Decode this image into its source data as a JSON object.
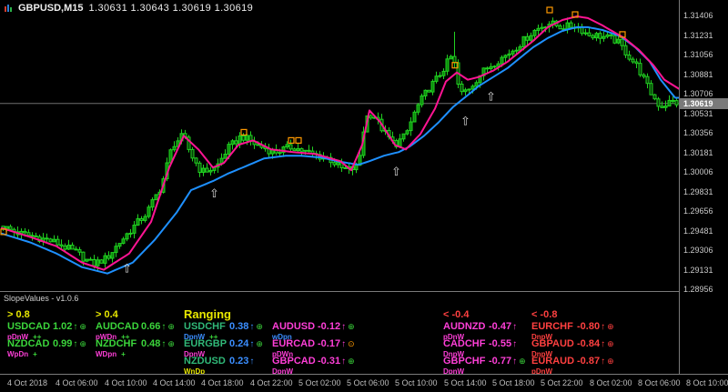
{
  "window_title": {
    "symbol": "GBPUSD,M15",
    "ohlc_text": "1.30631 1.30643 1.30619 1.30619"
  },
  "chart_data": {
    "type": "candlestick",
    "symbol": "GBPUSD",
    "timeframe": "M15",
    "ohlc_current": {
      "open": 1.30631,
      "high": 1.30643,
      "low": 1.30619,
      "close": 1.30619
    },
    "current_price": "1.30619",
    "y_range": [
      1.28956,
      1.31406
    ],
    "price_axis_ticks": [
      "1.31406",
      "1.31231",
      "1.31056",
      "1.30881",
      "1.30706",
      "1.30531",
      "1.30356",
      "1.30181",
      "1.30006",
      "1.29831",
      "1.29656",
      "1.29481",
      "1.29306",
      "1.29131",
      "1.28956"
    ],
    "time_axis_ticks": [
      "4 Oct 2018",
      "4 Oct 06:00",
      "4 Oct 10:00",
      "4 Oct 14:00",
      "4 Oct 18:00",
      "4 Oct 22:00",
      "5 Oct 02:00",
      "5 Oct 06:00",
      "5 Oct 10:00",
      "5 Oct 14:00",
      "5 Oct 18:00",
      "5 Oct 22:00",
      "8 Oct 02:00",
      "8 Oct 06:00",
      "8 Oct 10:00"
    ],
    "price_path_anchors": [
      [
        0,
        1.2952
      ],
      [
        5,
        1.29454
      ],
      [
        10,
        1.29422
      ],
      [
        15,
        1.29373
      ],
      [
        21,
        1.29276
      ],
      [
        25,
        1.29178
      ],
      [
        29,
        1.29235
      ],
      [
        32,
        1.29357
      ],
      [
        36,
        1.29503
      ],
      [
        40,
        1.29641
      ],
      [
        44,
        1.29884
      ],
      [
        47,
        1.30248
      ],
      [
        50,
        1.30329
      ],
      [
        52,
        1.30167
      ],
      [
        55,
        1.30005
      ],
      [
        59,
        1.30045
      ],
      [
        62,
        1.30207
      ],
      [
        66,
        1.30329
      ],
      [
        70,
        1.30248
      ],
      [
        75,
        1.30183
      ],
      [
        80,
        1.30232
      ],
      [
        85,
        1.30167
      ],
      [
        90,
        1.30126
      ],
      [
        94,
        1.30021
      ],
      [
        98,
        1.30045
      ],
      [
        100,
        1.30491
      ],
      [
        102,
        1.30531
      ],
      [
        105,
        1.30369
      ],
      [
        108,
        1.30248
      ],
      [
        111,
        1.30329
      ],
      [
        114,
        1.30572
      ],
      [
        117,
        1.30734
      ],
      [
        120,
        1.30855
      ],
      [
        124,
        1.31058
      ],
      [
        126,
        1.30693
      ],
      [
        129,
        1.30774
      ],
      [
        132,
        1.30895
      ],
      [
        135,
        1.30976
      ],
      [
        139,
        1.31058
      ],
      [
        142,
        1.31139
      ],
      [
        146,
        1.3126
      ],
      [
        150,
        1.31341
      ],
      [
        154,
        1.31301
      ],
      [
        158,
        1.31317
      ],
      [
        161,
        1.31236
      ],
      [
        165,
        1.3122
      ],
      [
        169,
        1.3118
      ],
      [
        172,
        1.31058
      ],
      [
        175,
        1.30936
      ],
      [
        178,
        1.30734
      ],
      [
        181,
        1.30588
      ],
      [
        184,
        1.30637
      ],
      [
        186,
        1.30619
      ]
    ],
    "spikes": [
      {
        "i": 124,
        "high": 1.3126
      },
      {
        "i": 25,
        "low": 1.2914
      }
    ],
    "ma_fast_pink": [
      [
        0,
        1.29503
      ],
      [
        8,
        1.29422
      ],
      [
        15,
        1.29341
      ],
      [
        22,
        1.29195
      ],
      [
        28,
        1.2913
      ],
      [
        35,
        1.29276
      ],
      [
        41,
        1.29559
      ],
      [
        46,
        1.30045
      ],
      [
        50,
        1.30329
      ],
      [
        54,
        1.30207
      ],
      [
        58,
        1.30045
      ],
      [
        61,
        1.30086
      ],
      [
        65,
        1.30248
      ],
      [
        69,
        1.30288
      ],
      [
        74,
        1.30207
      ],
      [
        80,
        1.30183
      ],
      [
        86,
        1.30167
      ],
      [
        93,
        1.30102
      ],
      [
        96,
        1.30021
      ],
      [
        99,
        1.30248
      ],
      [
        101,
        1.30556
      ],
      [
        104,
        1.3045
      ],
      [
        108,
        1.30248
      ],
      [
        111,
        1.30207
      ],
      [
        115,
        1.30345
      ],
      [
        119,
        1.30572
      ],
      [
        122,
        1.30815
      ],
      [
        125,
        1.30896
      ],
      [
        128,
        1.30831
      ],
      [
        131,
        1.30855
      ],
      [
        135,
        1.30912
      ],
      [
        139,
        1.30993
      ],
      [
        142,
        1.31074
      ],
      [
        146,
        1.31179
      ],
      [
        150,
        1.31301
      ],
      [
        154,
        1.31365
      ],
      [
        158,
        1.31398
      ],
      [
        161,
        1.31382
      ],
      [
        165,
        1.31317
      ],
      [
        168,
        1.3126
      ],
      [
        171,
        1.31204
      ],
      [
        175,
        1.31098
      ],
      [
        179,
        1.30961
      ],
      [
        182,
        1.30831
      ],
      [
        186,
        1.3075
      ]
    ],
    "ma_slow_blue": [
      [
        0,
        1.29454
      ],
      [
        8,
        1.29373
      ],
      [
        15,
        1.29276
      ],
      [
        22,
        1.29154
      ],
      [
        29,
        1.29097
      ],
      [
        36,
        1.29195
      ],
      [
        42,
        1.29398
      ],
      [
        48,
        1.29641
      ],
      [
        52,
        1.29843
      ],
      [
        58,
        1.29924
      ],
      [
        62,
        1.29989
      ],
      [
        68,
        1.3007
      ],
      [
        72,
        1.30126
      ],
      [
        78,
        1.30151
      ],
      [
        82,
        1.30151
      ],
      [
        88,
        1.30134
      ],
      [
        92,
        1.30102
      ],
      [
        98,
        1.3007
      ],
      [
        101,
        1.30102
      ],
      [
        105,
        1.30151
      ],
      [
        109,
        1.30183
      ],
      [
        112,
        1.30232
      ],
      [
        116,
        1.30329
      ],
      [
        120,
        1.3045
      ],
      [
        124,
        1.30588
      ],
      [
        128,
        1.30693
      ],
      [
        131,
        1.30774
      ],
      [
        135,
        1.30855
      ],
      [
        139,
        1.30936
      ],
      [
        142,
        1.31017
      ],
      [
        146,
        1.31122
      ],
      [
        150,
        1.31204
      ],
      [
        154,
        1.31268
      ],
      [
        158,
        1.31301
      ],
      [
        161,
        1.31301
      ],
      [
        165,
        1.31276
      ],
      [
        170,
        1.3122
      ],
      [
        174,
        1.31122
      ],
      [
        178,
        1.30993
      ],
      [
        181,
        1.30831
      ],
      [
        185,
        1.30669
      ]
    ],
    "white_up_arrows": [
      [
        34,
        1.29195
      ],
      [
        58,
        1.29867
      ],
      [
        108,
        1.30062
      ],
      [
        127,
        1.30515
      ],
      [
        134,
        1.30734
      ]
    ],
    "orange_squares": [
      [
        0,
        1.2947
      ],
      [
        66,
        1.30361
      ],
      [
        79,
        1.30288
      ],
      [
        81,
        1.30288
      ],
      [
        124,
        1.30961
      ],
      [
        150,
        1.31455
      ],
      [
        157,
        1.31414
      ],
      [
        170,
        1.31236
      ]
    ],
    "colors": {
      "bull": "#21D121",
      "bull_fill": "#0B8A0B",
      "bear_fill": "#063F06",
      "ma_fast": "#FF1493",
      "ma_slow": "#1E90FF",
      "marker_square": "#FF9900",
      "marker_arrow": "#D8D8D8",
      "current_price_line": "#6E6E6E"
    }
  },
  "panel": {
    "title": "SlopeValues - v1.0.6",
    "headers": [
      {
        "label": "> 0.8",
        "color": "#E8E800"
      },
      {
        "label": "> 0.4",
        "color": "#E8E800"
      },
      {
        "label": "Ranging",
        "color": "#E8E800"
      },
      {
        "label": "< -0.4",
        "color": "#FF4040"
      },
      {
        "label": "< -0.8",
        "color": "#FF4040"
      }
    ],
    "columns": [
      {
        "items": [
          {
            "pair": "USDCAD",
            "value": "1.02",
            "arrow": "↑",
            "badge": "⊕",
            "pair_color": "#3BD53B",
            "value_color": "#3BD53B",
            "badge_color": "#3BD53B",
            "sub": [
              {
                "t": "pDnW",
                "c": "#FF3FD8"
              },
              {
                "t": "++",
                "c": "#3BD53B"
              }
            ]
          },
          {
            "pair": "NZDCAD",
            "value": "0.99",
            "arrow": "↑",
            "badge": "⊕",
            "pair_color": "#3BD53B",
            "value_color": "#3BD53B",
            "badge_color": "#3BD53B",
            "sub": [
              {
                "t": "WpDn",
                "c": "#FF3FD8"
              },
              {
                "t": "+",
                "c": "#3BD53B"
              }
            ]
          }
        ]
      },
      {
        "items": [
          {
            "pair": "AUDCAD",
            "value": "0.66",
            "arrow": "↑",
            "badge": "⊕",
            "pair_color": "#3BD53B",
            "value_color": "#3BD53B",
            "badge_color": "#3BD53B",
            "sub": [
              {
                "t": "pWDn",
                "c": "#FF3FD8"
              },
              {
                "t": "++",
                "c": "#3BD53B"
              }
            ]
          },
          {
            "pair": "NZDCHF",
            "value": "0.48",
            "arrow": "↑",
            "badge": "⊕",
            "pair_color": "#3BD53B",
            "value_color": "#3BD53B",
            "badge_color": "#3BD53B",
            "sub": [
              {
                "t": "WDpn",
                "c": "#FF3FD8"
              },
              {
                "t": "+",
                "c": "#3BD53B"
              }
            ]
          }
        ]
      },
      {
        "items": [
          {
            "pair": "USDCHF",
            "value": "0.38",
            "arrow": "↑",
            "badge": "⊕",
            "pair_color": "#30B878",
            "value_color": "#3B8EFF",
            "badge_color": "#3BD53B",
            "sub": [
              {
                "t": "DpnW",
                "c": "#3B8EFF"
              },
              {
                "t": "++",
                "c": "#3BD53B"
              }
            ]
          },
          {
            "pair": "EURGBP",
            "value": "0.24",
            "arrow": "↑",
            "badge": "⊕",
            "pair_color": "#30B878",
            "value_color": "#3B8EFF",
            "badge_color": "#3BD53B",
            "sub": [
              {
                "t": "DpnW",
                "c": "#FF3FD8"
              }
            ]
          },
          {
            "pair": "NZDUSD",
            "value": "0.23",
            "arrow": "↑",
            "badge": "",
            "pair_color": "#30B878",
            "value_color": "#3B8EFF",
            "badge_color": "#3BD53B",
            "sub": [
              {
                "t": "WnDp",
                "c": "#E8E800"
              }
            ]
          }
        ]
      },
      {
        "items": [
          {
            "pair": "AUDUSD",
            "value": "-0.12",
            "arrow": "↑",
            "badge": "⊕",
            "pair_color": "#FF3FD8",
            "value_color": "#FF3FD8",
            "badge_color": "#3BD53B",
            "sub": [
              {
                "t": "wDpn",
                "c": "#3B8EFF"
              }
            ]
          },
          {
            "pair": "EURCAD",
            "value": "-0.17",
            "arrow": "↑",
            "badge": "⊙",
            "pair_color": "#FF3FD8",
            "value_color": "#FF3FD8",
            "badge_color": "#FF9900",
            "sub": [
              {
                "t": "pDWn",
                "c": "#FF3FD8"
              }
            ]
          },
          {
            "pair": "GBPCAD",
            "value": "-0.31",
            "arrow": "↑",
            "badge": "⊕",
            "pair_color": "#FF3FD8",
            "value_color": "#FF3FD8",
            "badge_color": "#3BD53B",
            "sub": [
              {
                "t": "DpnW",
                "c": "#FF3FD8"
              }
            ]
          }
        ]
      },
      {
        "items": [
          {
            "pair": "AUDNZD",
            "value": "-0.47",
            "arrow": "↑",
            "badge": "",
            "pair_color": "#FF3FD8",
            "value_color": "#FF3FD8",
            "badge_color": "#FF4040",
            "sub": [
              {
                "t": "pDnW",
                "c": "#FF3FD8"
              }
            ]
          },
          {
            "pair": "CADCHF",
            "value": "-0.55",
            "arrow": "↑",
            "badge": "",
            "pair_color": "#FF3FD8",
            "value_color": "#FF3FD8",
            "badge_color": "#FF4040",
            "sub": [
              {
                "t": "DnpW",
                "c": "#FF3FD8"
              }
            ]
          },
          {
            "pair": "GBPCHF",
            "value": "-0.77",
            "arrow": "↑",
            "badge": "⊕",
            "pair_color": "#FF3FD8",
            "value_color": "#FF3FD8",
            "badge_color": "#3BD53B",
            "sub": [
              {
                "t": "DpnW",
                "c": "#FF3FD8"
              }
            ]
          }
        ]
      },
      {
        "items": [
          {
            "pair": "EURCHF",
            "value": "-0.80",
            "arrow": "↑",
            "badge": "⊕",
            "pair_color": "#FF4040",
            "value_color": "#FF4040",
            "badge_color": "#FF4040",
            "sub": [
              {
                "t": "DnpW",
                "c": "#FF4040"
              }
            ]
          },
          {
            "pair": "GBPAUD",
            "value": "-0.84",
            "arrow": "↑",
            "badge": "⊕",
            "pair_color": "#FF4040",
            "value_color": "#FF4040",
            "badge_color": "#FF4040",
            "sub": [
              {
                "t": "DnpW",
                "c": "#FF4040"
              }
            ]
          },
          {
            "pair": "EURAUD",
            "value": "-0.87",
            "arrow": "↑",
            "badge": "⊕",
            "pair_color": "#FF4040",
            "value_color": "#FF4040",
            "badge_color": "#FF4040",
            "sub": [
              {
                "t": "pDnW",
                "c": "#FF4040"
              }
            ]
          }
        ]
      }
    ]
  }
}
